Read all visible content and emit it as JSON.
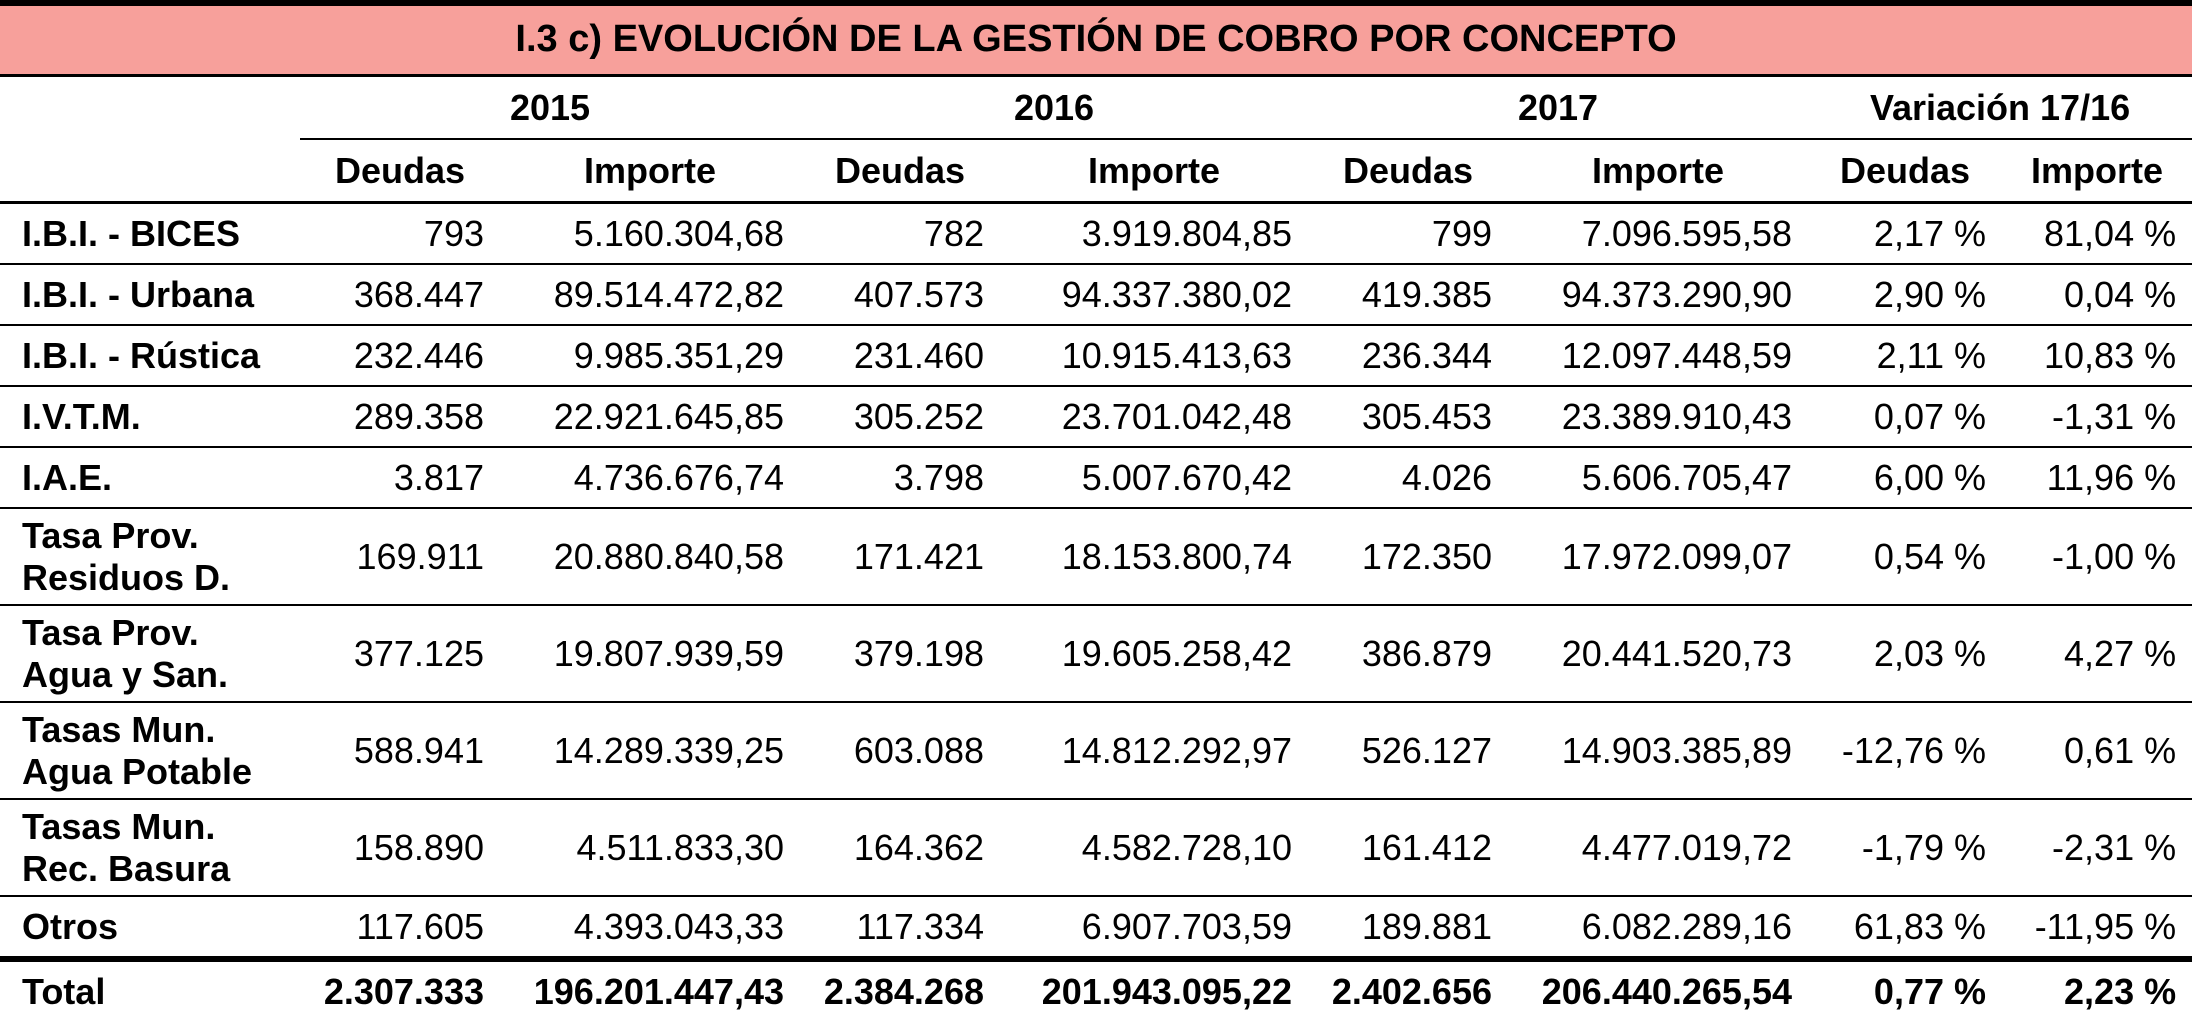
{
  "title": "I.3 c) EVOLUCIÓN DE LA GESTIÓN DE COBRO POR CONCEPTO",
  "years": [
    "2015",
    "2016",
    "2017",
    "Variación 17/16"
  ],
  "subheaders": [
    "Deudas",
    "Importe",
    "Deudas",
    "Importe",
    "Deudas",
    "Importe",
    "Deudas",
    "Importe"
  ],
  "rows": [
    {
      "label_1": "I.B.I. - BICES",
      "label_2": "",
      "values": [
        "793",
        "5.160.304,68",
        "782",
        "3.919.804,85",
        "799",
        "7.096.595,58",
        "2,17 %",
        "81,04 %"
      ]
    },
    {
      "label_1": "I.B.I. - Urbana",
      "label_2": "",
      "values": [
        "368.447",
        "89.514.472,82",
        "407.573",
        "94.337.380,02",
        "419.385",
        "94.373.290,90",
        "2,90 %",
        "0,04 %"
      ]
    },
    {
      "label_1": "I.B.I. - Rústica",
      "label_2": "",
      "values": [
        "232.446",
        "9.985.351,29",
        "231.460",
        "10.915.413,63",
        "236.344",
        "12.097.448,59",
        "2,11 %",
        "10,83 %"
      ]
    },
    {
      "label_1": "I.V.T.M.",
      "label_2": "",
      "values": [
        "289.358",
        "22.921.645,85",
        "305.252",
        "23.701.042,48",
        "305.453",
        "23.389.910,43",
        "0,07 %",
        "-1,31 %"
      ]
    },
    {
      "label_1": "I.A.E.",
      "label_2": "",
      "values": [
        "3.817",
        "4.736.676,74",
        "3.798",
        "5.007.670,42",
        "4.026",
        "5.606.705,47",
        "6,00 %",
        "11,96 %"
      ]
    },
    {
      "label_1": "Tasa Prov.",
      "label_2": "Residuos D.",
      "values": [
        "169.911",
        "20.880.840,58",
        "171.421",
        "18.153.800,74",
        "172.350",
        "17.972.099,07",
        "0,54 %",
        "-1,00 %"
      ]
    },
    {
      "label_1": "Tasa Prov.",
      "label_2": "Agua y San.",
      "values": [
        "377.125",
        "19.807.939,59",
        "379.198",
        "19.605.258,42",
        "386.879",
        "20.441.520,73",
        "2,03 %",
        "4,27 %"
      ]
    },
    {
      "label_1": "Tasas Mun.",
      "label_2": "Agua Potable",
      "values": [
        "588.941",
        "14.289.339,25",
        "603.088",
        "14.812.292,97",
        "526.127",
        "14.903.385,89",
        "-12,76 %",
        "0,61 %"
      ]
    },
    {
      "label_1": "Tasas Mun.",
      "label_2": "Rec. Basura",
      "values": [
        "158.890",
        "4.511.833,30",
        "164.362",
        "4.582.728,10",
        "161.412",
        "4.477.019,72",
        "-1,79 %",
        "-2,31 %"
      ]
    },
    {
      "label_1": "Otros",
      "label_2": "",
      "values": [
        "117.605",
        "4.393.043,33",
        "117.334",
        "6.907.703,59",
        "189.881",
        "6.082.289,16",
        "61,83 %",
        "-11,95 %"
      ]
    }
  ],
  "total": {
    "label": "Total",
    "values": [
      "2.307.333",
      "196.201.447,43",
      "2.384.268",
      "201.943.095,22",
      "2.402.656",
      "206.440.265,54",
      "0,77 %",
      "2,23 %"
    ]
  },
  "colors": {
    "title_background": "#f7a09b",
    "rule": "#000000"
  }
}
